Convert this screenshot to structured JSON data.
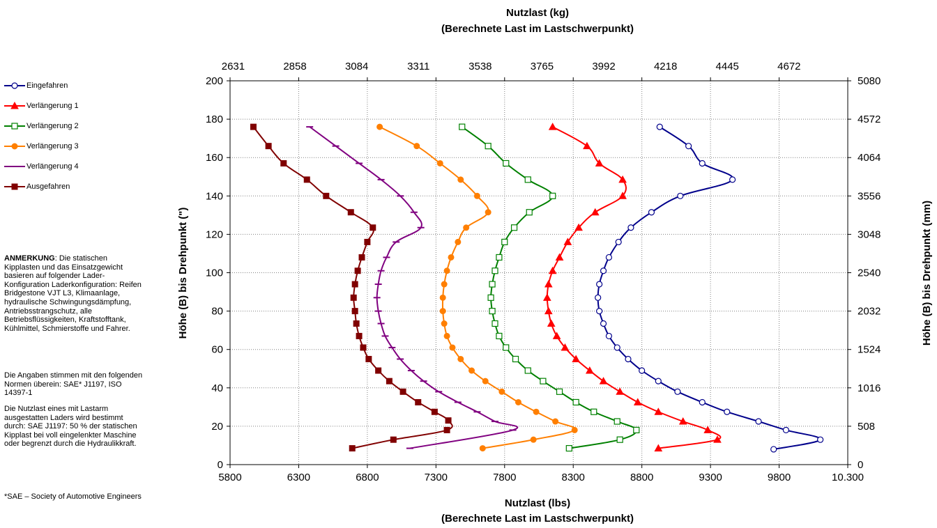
{
  "colors": {
    "eingefahren": "#00008B",
    "verl1": "#FF0000",
    "verl2": "#008000",
    "verl3": "#FF7F00",
    "verl4": "#800080",
    "ausgefahren": "#800000"
  },
  "notes": {
    "anmerkung_label": "ANMERKUNG",
    "anmerkung_text": ": Die statischen Kipplasten und das Einsatzgewicht basieren auf folgender Lader-Konfiguration Laderkonfiguration:  Reifen Bridgestone VJT L3, Klimaanlage, hydraulische Schwingungsdämpfung, Antriebsstrangschutz, alle Betriebsflüssigkeiten, Kraftstofftank, Kühlmittel, Schmierstoffe und Fahrer.",
    "normen": "Die Angaben stimmen mit den folgenden Normen überein: SAE* J1197, ISO 14397-1",
    "nutzlast": "Die Nutzlast eines mit Lastarm ausgestatten Laders wird bestimmt durch: SAE J1197: 50 % der statischen Kipplast bei voll eingelenkter Maschine oder begrenzt durch die Hydraulikkraft.",
    "sae": "*SAE – Society of Automotive Engineers"
  },
  "chart_data": {
    "type": "line",
    "title_top": "Nutzlast (kg)",
    "subtitle_top": "(Berechnete Last im Lastschwerpunkt)",
    "xlabel": "Nutzlast (lbs)",
    "xlabel_sub": "(Berechnete Last im Lastschwerpunkt)",
    "ylabel_left": "Höhe (B) bis Drehpunkt (\")",
    "ylabel_right": "Höhe (B) bis Drehpunkt (mm)",
    "xlim": [
      5800,
      10300
    ],
    "ylim": [
      0,
      200
    ],
    "x_ticks": [
      5800,
      6300,
      6800,
      7300,
      7800,
      8300,
      8800,
      9300,
      9800,
      10300
    ],
    "x_tick_labels": [
      "5800",
      "6300",
      "6800",
      "7300",
      "7800",
      "8300",
      "8800",
      "9300",
      "9800",
      "10.300"
    ],
    "y_ticks": [
      0,
      20,
      40,
      60,
      80,
      100,
      120,
      140,
      160,
      180,
      200
    ],
    "y_tick_labels": [
      "0",
      "20",
      "40",
      "60",
      "80",
      "100",
      "120",
      "140",
      "160",
      "180",
      "200"
    ],
    "top_tick_labels": [
      "2631",
      "2858",
      "3084",
      "3311",
      "3538",
      "3765",
      "3992",
      "4218",
      "4445",
      "4672"
    ],
    "right_tick_labels": [
      "0",
      "508",
      "1016",
      "1524",
      "2032",
      "2540",
      "3048",
      "3556",
      "4064",
      "4572",
      "5080"
    ],
    "grid": true,
    "legend_position": "left",
    "series": [
      {
        "name": "Eingefahren",
        "color_key": "eingefahren",
        "marker": "circle-open",
        "points": [
          [
            9760,
            8
          ],
          [
            10100,
            13
          ],
          [
            9850,
            18
          ],
          [
            9650,
            22.5
          ],
          [
            9420,
            27.5
          ],
          [
            9240,
            32.5
          ],
          [
            9060,
            38
          ],
          [
            8920,
            43.5
          ],
          [
            8800,
            49
          ],
          [
            8700,
            55
          ],
          [
            8620,
            61
          ],
          [
            8560,
            67
          ],
          [
            8520,
            73.5
          ],
          [
            8490,
            80
          ],
          [
            8480,
            87
          ],
          [
            8490,
            94
          ],
          [
            8520,
            101
          ],
          [
            8560,
            108
          ],
          [
            8630,
            116
          ],
          [
            8720,
            123.5
          ],
          [
            8870,
            131.5
          ],
          [
            9080,
            140
          ],
          [
            9460,
            148.5
          ],
          [
            9240,
            157
          ],
          [
            9140,
            166
          ],
          [
            8930,
            176
          ]
        ]
      },
      {
        "name": "Verlängerung 1",
        "color_key": "verl1",
        "marker": "triangle",
        "points": [
          [
            8920,
            8.5
          ],
          [
            9350,
            13
          ],
          [
            9280,
            18
          ],
          [
            9100,
            22.5
          ],
          [
            8920,
            27.5
          ],
          [
            8770,
            32.5
          ],
          [
            8640,
            38
          ],
          [
            8520,
            43.5
          ],
          [
            8420,
            49
          ],
          [
            8320,
            55
          ],
          [
            8240,
            61
          ],
          [
            8180,
            67
          ],
          [
            8140,
            73.5
          ],
          [
            8120,
            80
          ],
          [
            8110,
            87
          ],
          [
            8120,
            94
          ],
          [
            8150,
            101
          ],
          [
            8200,
            108
          ],
          [
            8260,
            116
          ],
          [
            8340,
            123.5
          ],
          [
            8460,
            131.5
          ],
          [
            8660,
            140
          ],
          [
            8660,
            148.5
          ],
          [
            8490,
            157
          ],
          [
            8400,
            166
          ],
          [
            8150,
            176
          ]
        ]
      },
      {
        "name": "Verlängerung 2",
        "color_key": "verl2",
        "marker": "square-open",
        "points": [
          [
            8270,
            8.5
          ],
          [
            8640,
            13
          ],
          [
            8760,
            18
          ],
          [
            8620,
            22.5
          ],
          [
            8450,
            27.5
          ],
          [
            8320,
            32.5
          ],
          [
            8200,
            38
          ],
          [
            8080,
            43.5
          ],
          [
            7970,
            49
          ],
          [
            7880,
            55
          ],
          [
            7810,
            61
          ],
          [
            7760,
            67
          ],
          [
            7730,
            73.5
          ],
          [
            7710,
            80
          ],
          [
            7700,
            87
          ],
          [
            7710,
            94
          ],
          [
            7730,
            101
          ],
          [
            7760,
            108
          ],
          [
            7800,
            116
          ],
          [
            7870,
            123.5
          ],
          [
            7980,
            131.5
          ],
          [
            8150,
            140
          ],
          [
            7970,
            148.5
          ],
          [
            7810,
            157
          ],
          [
            7680,
            166
          ],
          [
            7490,
            176
          ]
        ]
      },
      {
        "name": "Verlängerung 3",
        "color_key": "verl3",
        "marker": "circle",
        "points": [
          [
            7640,
            8.5
          ],
          [
            8010,
            13
          ],
          [
            8310,
            18
          ],
          [
            8170,
            22.5
          ],
          [
            8030,
            27.5
          ],
          [
            7900,
            32.5
          ],
          [
            7780,
            38
          ],
          [
            7660,
            43.5
          ],
          [
            7560,
            49
          ],
          [
            7480,
            55
          ],
          [
            7420,
            61
          ],
          [
            7380,
            67
          ],
          [
            7360,
            73.5
          ],
          [
            7350,
            80
          ],
          [
            7350,
            87
          ],
          [
            7360,
            94
          ],
          [
            7380,
            101
          ],
          [
            7410,
            108
          ],
          [
            7460,
            116
          ],
          [
            7520,
            123.5
          ],
          [
            7680,
            131.5
          ],
          [
            7600,
            140
          ],
          [
            7480,
            148.5
          ],
          [
            7330,
            157
          ],
          [
            7160,
            166
          ],
          [
            6890,
            176
          ]
        ]
      },
      {
        "name": "Verlängerung 4",
        "color_key": "verl4",
        "marker": "dash",
        "points": [
          [
            7110,
            8.5
          ],
          [
            7860,
            18
          ],
          [
            7730,
            22.5
          ],
          [
            7600,
            27.5
          ],
          [
            7460,
            32.5
          ],
          [
            7320,
            38
          ],
          [
            7210,
            43.5
          ],
          [
            7120,
            49
          ],
          [
            7040,
            55
          ],
          [
            6980,
            61
          ],
          [
            6930,
            67
          ],
          [
            6900,
            73.5
          ],
          [
            6880,
            80
          ],
          [
            6870,
            87
          ],
          [
            6880,
            94
          ],
          [
            6900,
            101
          ],
          [
            6940,
            108
          ],
          [
            7010,
            116
          ],
          [
            7190,
            123.5
          ],
          [
            7140,
            131.5
          ],
          [
            7040,
            140
          ],
          [
            6900,
            148.5
          ],
          [
            6740,
            157
          ],
          [
            6570,
            166
          ],
          [
            6380,
            176
          ]
        ]
      },
      {
        "name": "Ausgefahren",
        "color_key": "ausgefahren",
        "marker": "square",
        "points": [
          [
            6690,
            8.5
          ],
          [
            6990,
            13
          ],
          [
            7380,
            18
          ],
          [
            7390,
            23
          ],
          [
            7290,
            27.5
          ],
          [
            7170,
            32.5
          ],
          [
            7060,
            38
          ],
          [
            6960,
            43.5
          ],
          [
            6880,
            49
          ],
          [
            6810,
            55
          ],
          [
            6770,
            61
          ],
          [
            6740,
            67
          ],
          [
            6720,
            73.5
          ],
          [
            6710,
            80
          ],
          [
            6700,
            87
          ],
          [
            6710,
            94
          ],
          [
            6730,
            101
          ],
          [
            6760,
            108
          ],
          [
            6800,
            116
          ],
          [
            6840,
            123.5
          ],
          [
            6680,
            131.5
          ],
          [
            6500,
            140
          ],
          [
            6360,
            148.5
          ],
          [
            6190,
            157
          ],
          [
            6080,
            166
          ],
          [
            5970,
            176
          ]
        ]
      }
    ]
  }
}
